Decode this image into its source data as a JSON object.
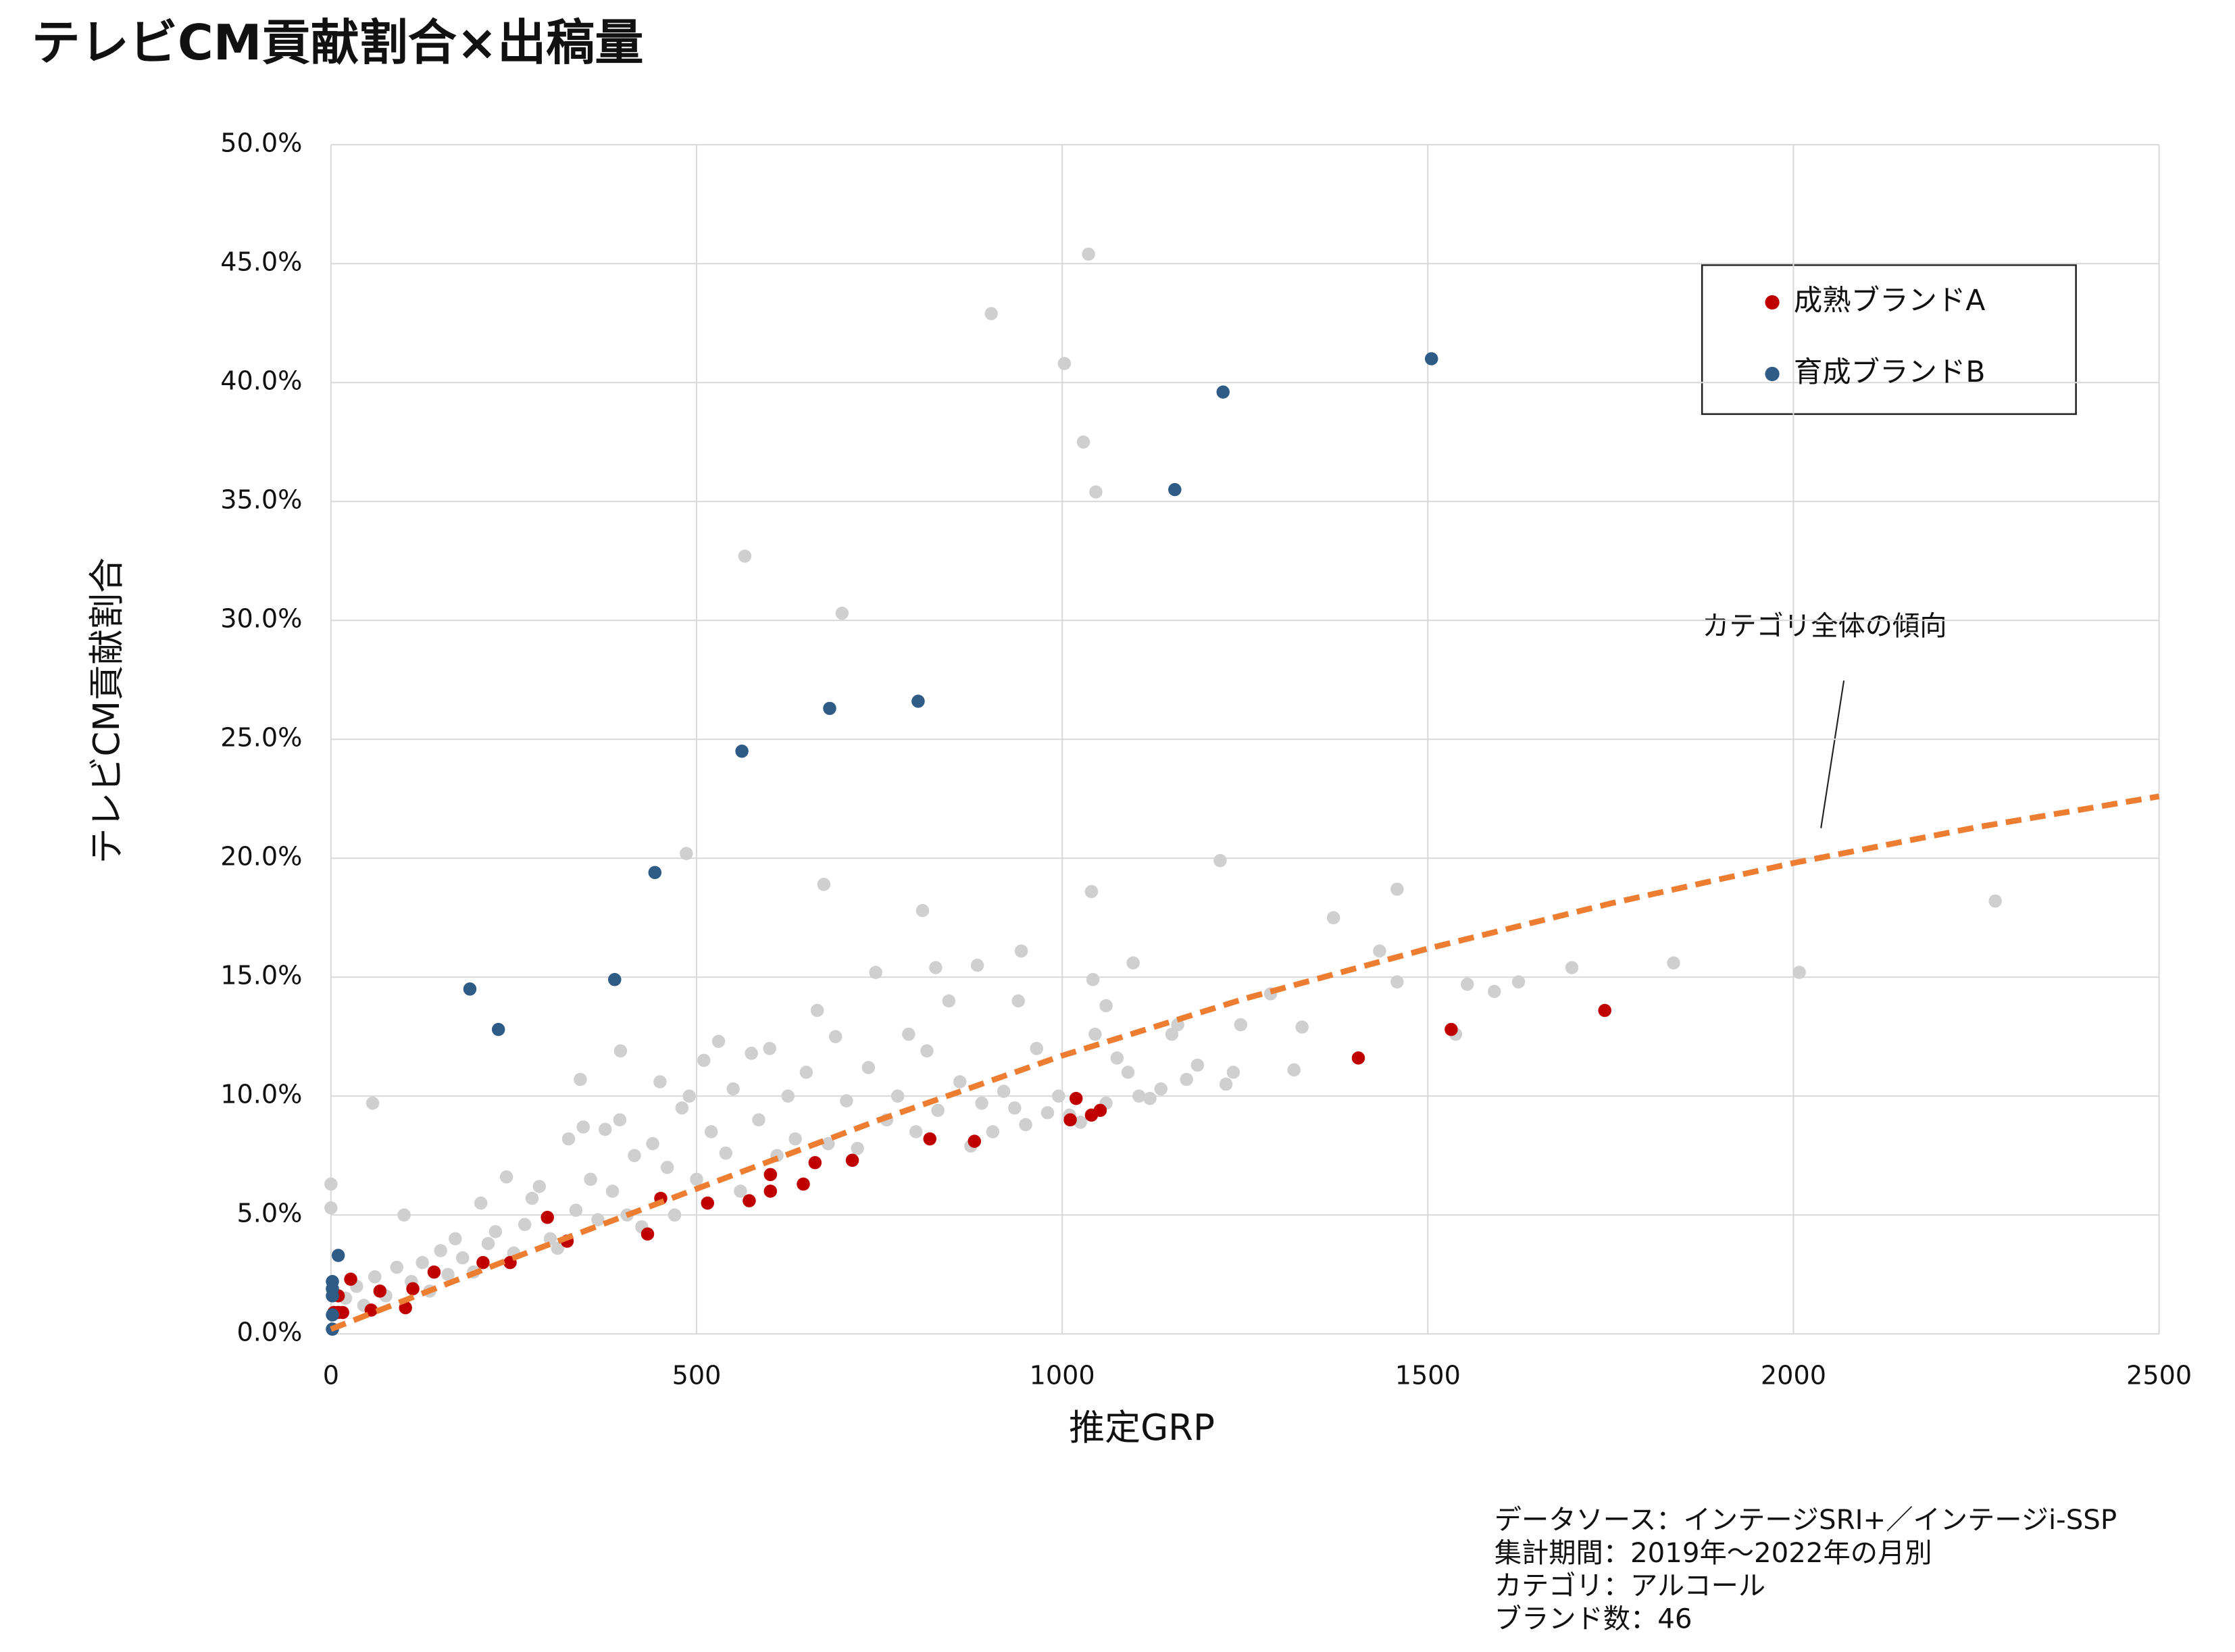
{
  "chart_data": {
    "type": "scatter",
    "title": "テレビCM貢献割合×出稿量",
    "x_label": "推定GRP",
    "y_label": "テレビCM貢献割合",
    "xlim": [
      0,
      2500
    ],
    "xticks": [
      0,
      500,
      1000,
      1500,
      2000,
      2500
    ],
    "ylim": [
      0,
      50
    ],
    "yticks": [
      {
        "value": 0,
        "label": "0.0%"
      },
      {
        "value": 5,
        "label": "5.0%"
      },
      {
        "value": 10,
        "label": "10.0%"
      },
      {
        "value": 15,
        "label": "15.0%"
      },
      {
        "value": 20,
        "label": "20.0%"
      },
      {
        "value": 25,
        "label": "25.0%"
      },
      {
        "value": 30,
        "label": "30.0%"
      },
      {
        "value": 35,
        "label": "35.0%"
      },
      {
        "value": 40,
        "label": "40.0%"
      },
      {
        "value": 45,
        "label": "45.0%"
      },
      {
        "value": 50,
        "label": "50.0%"
      }
    ],
    "grid": true,
    "legend": "upper right",
    "series": [
      {
        "color": "#cfcfcf",
        "x": [
          1036,
          903,
          1003,
          1029,
          1046,
          566,
          699,
          486,
          674,
          809,
          1040,
          1216,
          1458,
          1371,
          2276,
          2008,
          1836,
          1697,
          1624,
          1591,
          1554,
          1458,
          1434,
          1285,
          1328,
          1317,
          1538,
          1244,
          1234,
          1224,
          1158,
          1097,
          944,
          884,
          827,
          1042,
          57,
          341,
          396,
          0,
          0,
          20,
          35,
          45,
          60,
          75,
          90,
          100,
          110,
          125,
          135,
          150,
          160,
          170,
          180,
          195,
          205,
          215,
          225,
          240,
          250,
          265,
          275,
          285,
          300,
          310,
          325,
          335,
          345,
          355,
          365,
          375,
          385,
          395,
          405,
          415,
          425,
          440,
          450,
          460,
          470,
          480,
          490,
          500,
          510,
          520,
          530,
          540,
          550,
          560,
          575,
          585,
          600,
          610,
          625,
          635,
          650,
          665,
          680,
          690,
          705,
          720,
          735,
          745,
          760,
          775,
          790,
          800,
          815,
          830,
          845,
          860,
          875,
          890,
          905,
          920,
          935,
          950,
          965,
          980,
          995,
          1010,
          1025,
          1045,
          1060,
          1075,
          1090,
          1105,
          1120,
          1135,
          1150,
          1060,
          940,
          1170,
          1185
        ],
        "values": [
          45.4,
          42.9,
          40.8,
          37.5,
          35.4,
          32.7,
          30.3,
          20.2,
          18.9,
          17.8,
          18.6,
          19.9,
          18.7,
          17.5,
          18.2,
          15.2,
          15.6,
          15.4,
          14.8,
          14.4,
          14.7,
          14.8,
          16.1,
          14.3,
          12.9,
          11.1,
          12.6,
          13.0,
          11.0,
          10.5,
          13.0,
          15.6,
          16.1,
          15.5,
          15.4,
          14.9,
          9.7,
          10.7,
          11.9,
          6.3,
          5.3,
          1.5,
          2.0,
          1.2,
          2.4,
          1.6,
          2.8,
          5.0,
          2.2,
          3.0,
          1.8,
          3.5,
          2.5,
          4.0,
          3.2,
          2.6,
          5.5,
          3.8,
          4.3,
          6.6,
          3.4,
          4.6,
          5.7,
          6.2,
          4.0,
          3.6,
          8.2,
          5.2,
          8.7,
          6.5,
          4.8,
          8.6,
          6.0,
          9.0,
          5.0,
          7.5,
          4.5,
          8.0,
          10.6,
          7.0,
          5.0,
          9.5,
          10.0,
          6.5,
          11.5,
          8.5,
          12.3,
          7.6,
          10.3,
          6.0,
          11.8,
          9.0,
          12.0,
          7.5,
          10.0,
          8.2,
          11.0,
          13.6,
          8.0,
          12.5,
          9.8,
          7.8,
          11.2,
          15.2,
          9.0,
          10.0,
          12.6,
          8.5,
          11.9,
          9.4,
          14.0,
          10.6,
          7.9,
          9.7,
          8.5,
          10.2,
          9.5,
          8.8,
          12.0,
          9.3,
          10.0,
          9.2,
          8.9,
          12.6,
          9.7,
          11.6,
          11.0,
          10.0,
          9.9,
          10.3,
          12.6,
          13.8,
          14.0,
          10.7,
          11.3
        ]
      },
      {
        "name": "成熟ブランドA",
        "color": "#c00000",
        "x": [
          10,
          16,
          4,
          10,
          27,
          55,
          67,
          102,
          112,
          141,
          208,
          245,
          296,
          323,
          433,
          451,
          515,
          572,
          601,
          601,
          646,
          662,
          713,
          819,
          880,
          1011,
          1019,
          1040,
          1052,
          1405,
          1532,
          1742
        ],
        "values": [
          0.9,
          0.9,
          0.9,
          1.6,
          2.3,
          1.0,
          1.8,
          1.1,
          1.9,
          2.6,
          3.0,
          3.0,
          4.9,
          3.9,
          4.2,
          5.7,
          5.5,
          5.6,
          6.0,
          6.7,
          6.3,
          7.2,
          7.3,
          8.2,
          8.1,
          9.0,
          9.9,
          9.2,
          9.4,
          11.6,
          12.8,
          13.6
        ]
      },
      {
        "name": "育成ブランドB",
        "color": "#2f5b87",
        "x": [
          2,
          2,
          2,
          2,
          10,
          2,
          190,
          229,
          388,
          443,
          562,
          682,
          803,
          1154,
          1220,
          1505
        ],
        "values": [
          0.8,
          1.6,
          2.2,
          1.9,
          3.3,
          0.2,
          14.5,
          12.8,
          14.9,
          19.4,
          24.5,
          26.3,
          26.6,
          35.5,
          39.6,
          41.0
        ]
      }
    ],
    "trend": {
      "label": "カテゴリ全体の傾向",
      "color": "#ed7d31",
      "x": [
        0,
        250,
        500,
        750,
        1000,
        1250,
        1500,
        1750,
        2000,
        2250,
        2500
      ],
      "values": [
        0.2,
        3.2,
        6.1,
        9.0,
        11.7,
        14.1,
        16.2,
        18.1,
        19.8,
        21.3,
        22.6
      ]
    },
    "notes": [
      "データソース：インテージSRI+／インテージi-SSP",
      "集計期間：2019年～2022年の月別",
      "カテゴリ：アルコール",
      "ブランド数：46"
    ]
  }
}
